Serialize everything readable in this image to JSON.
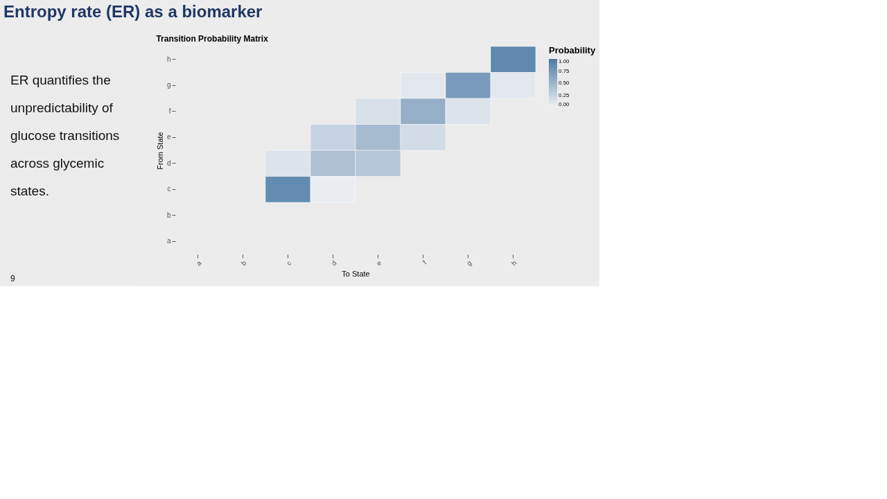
{
  "chart_data": {
    "type": "heatmap",
    "title": "Entropy rate (ER) as a biomarker",
    "subtitle": "Transition Probability Matrix",
    "xlabel": "To State",
    "ylabel": "From State",
    "legend_title": "Probability",
    "categories": [
      "a",
      "b",
      "c",
      "d",
      "e",
      "f",
      "g",
      "h"
    ],
    "y_categories": [
      "h",
      "g",
      "f",
      "e",
      "d",
      "c",
      "b",
      "a"
    ],
    "cells": [
      [
        null,
        null,
        null,
        null,
        null,
        null,
        null,
        0.88
      ],
      [
        null,
        null,
        null,
        null,
        null,
        0.08,
        0.72,
        0.08
      ],
      [
        null,
        null,
        null,
        null,
        0.15,
        0.55,
        0.12,
        null
      ],
      [
        null,
        null,
        null,
        0.25,
        0.45,
        0.18,
        null,
        null
      ],
      [
        null,
        null,
        0.12,
        0.4,
        0.36,
        null,
        null,
        null
      ],
      [
        null,
        null,
        0.85,
        0.04,
        null,
        null,
        null,
        null
      ],
      [
        null,
        null,
        null,
        null,
        null,
        null,
        null,
        null
      ],
      [
        null,
        null,
        null,
        null,
        null,
        null,
        null,
        null
      ]
    ],
    "clim": [
      0,
      1
    ],
    "cticks": [
      {
        "value": 0,
        "label": "0.00"
      },
      {
        "value": 0.25,
        "label": "0.25"
      },
      {
        "value": 0.5,
        "label": "0.50"
      },
      {
        "value": 0.75,
        "label": "0.75"
      },
      {
        "value": 1,
        "label": "1.00"
      }
    ],
    "grid": false,
    "annotations": [
      "ER quantifies the unpredictability of glucose transitions across glycemic states.",
      "9"
    ]
  }
}
